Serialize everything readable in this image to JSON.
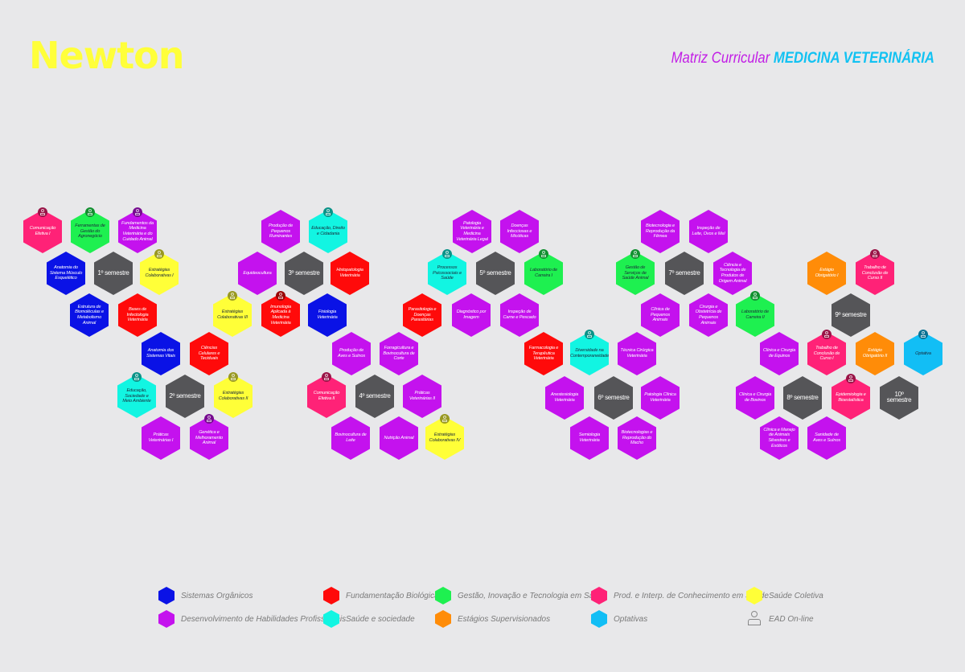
{
  "header": {
    "logo": "Newton",
    "title_prefix": "Matriz Curricular",
    "title_course": "MEDICINA VETERINÁRIA"
  },
  "colors": {
    "S": "#0a12e6",
    "F": "#ff0a0a",
    "G": "#1ef050",
    "P": "#ff2277",
    "C": "#ffff38",
    "D": "#c412ee",
    "H": "#12f5e2",
    "E": "#ff8c08",
    "O": "#12bef5",
    "X": "#555558"
  },
  "legend": [
    {
      "key": "S",
      "label": "Sistemas Orgânicos"
    },
    {
      "key": "D",
      "label": "Desenvolvimento de Habilidades Profissionais"
    },
    {
      "key": "F",
      "label": "Fundamentação Biológica"
    },
    {
      "key": "H",
      "label": "Saúde e sociedade"
    },
    {
      "key": "G",
      "label": "Gestão, Inovação e Tecnologia em Saúde"
    },
    {
      "key": "E",
      "label": "Estágios Supervisionados"
    },
    {
      "key": "P",
      "label": "Prod. e Interp. de Conhecimento em Saúde"
    },
    {
      "key": "O",
      "label": "Optativas"
    },
    {
      "key": "C",
      "label": "Saúde Coletiva"
    },
    {
      "key": "EAD",
      "label": "EAD On-line",
      "icon": "ead-person-computer-icon"
    }
  ],
  "courses": [
    {
      "label": "Comunicação Efetiva I",
      "cat": "P",
      "ead": true
    },
    {
      "label": "Ferramentas de Gestão do Agronegócio",
      "cat": "G",
      "ead": true
    },
    {
      "label": "Fundamentos da Medicina Veterinária e do Cuidado Animal",
      "cat": "D",
      "ead": true
    },
    {
      "label": "Anatomia do Sistema Músculo Esquelético",
      "cat": "S",
      "ead": false
    },
    {
      "label": "1º semestre",
      "cat": "X",
      "ead": false
    },
    {
      "label": "Estratégias Colaborativas I",
      "cat": "C",
      "ead": true
    },
    {
      "label": "Estrutura de Biomoléculas e Metabolismo Animal",
      "cat": "S",
      "ead": false
    },
    {
      "label": "Bases de Infectologia Veterinária",
      "cat": "F",
      "ead": false
    },
    {
      "label": "Anatomia dos Sistemas Vitais",
      "cat": "S",
      "ead": false
    },
    {
      "label": "Ciências Celulares e Teciduais",
      "cat": "F",
      "ead": false
    },
    {
      "label": "Educação, Sociedade e Meio Ambiente",
      "cat": "H",
      "ead": true
    },
    {
      "label": "2º semestre",
      "cat": "X",
      "ead": false
    },
    {
      "label": "Estratégias Colaborativas II",
      "cat": "C",
      "ead": true
    },
    {
      "label": "Práticas Veterinárias I",
      "cat": "D",
      "ead": false
    },
    {
      "label": "Genética e Melhoramento Animal",
      "cat": "D",
      "ead": true
    },
    {
      "label": "Produção de Pequenos Ruminantes",
      "cat": "D",
      "ead": false
    },
    {
      "label": "Educação, Direito e Cidadania",
      "cat": "H",
      "ead": true
    },
    {
      "label": "Equideocultura",
      "cat": "D",
      "ead": false
    },
    {
      "label": "3º semestre",
      "cat": "X",
      "ead": false
    },
    {
      "label": "Histopatologia Veterinária",
      "cat": "F",
      "ead": false
    },
    {
      "label": "Estratégias Colaborativas III",
      "cat": "C",
      "ead": true
    },
    {
      "label": "Imunologia Aplicada à Medicina Veterinária",
      "cat": "F",
      "ead": true
    },
    {
      "label": "Fisiologia Veterinária",
      "cat": "S",
      "ead": false
    },
    {
      "label": "Produção de Aves e Suínos",
      "cat": "D",
      "ead": false
    },
    {
      "label": "Forragicultura e Bovinocultura de Corte",
      "cat": "D",
      "ead": false
    },
    {
      "label": "Comunicação Efetiva II",
      "cat": "P",
      "ead": true
    },
    {
      "label": "4º semestre",
      "cat": "X",
      "ead": false
    },
    {
      "label": "Práticas Veterinárias II",
      "cat": "D",
      "ead": false
    },
    {
      "label": "Bovinocultura de Leite",
      "cat": "D",
      "ead": false
    },
    {
      "label": "Nutrição Animal",
      "cat": "D",
      "ead": false
    },
    {
      "label": "Estratégias Colaborativas IV",
      "cat": "C",
      "ead": true
    },
    {
      "label": "Patologia Veterinária e Medicina Veterinária Legal",
      "cat": "D",
      "ead": false
    },
    {
      "label": "Doenças Infecciosas e Micóticas",
      "cat": "D",
      "ead": false
    },
    {
      "label": "Processos Psicossociais e Saúde",
      "cat": "H",
      "ead": true
    },
    {
      "label": "5º semestre",
      "cat": "X",
      "ead": false
    },
    {
      "label": "Laboratório de Carreira I",
      "cat": "G",
      "ead": true
    },
    {
      "label": "Parasitologia e Doenças Parasitárias",
      "cat": "F",
      "ead": false
    },
    {
      "label": "Diagnóstico por Imagem",
      "cat": "D",
      "ead": false
    },
    {
      "label": "Inspeção de Carne e Pescado",
      "cat": "D",
      "ead": false
    },
    {
      "label": "Farmacologia e Terapêutica Veterinária",
      "cat": "F",
      "ead": false
    },
    {
      "label": "Diversidade na Contemporaneidade",
      "cat": "H",
      "ead": true
    },
    {
      "label": "Técnica Cirúrgica Veterinária",
      "cat": "D",
      "ead": false
    },
    {
      "label": "Anestesiologia Veterinária",
      "cat": "D",
      "ead": false
    },
    {
      "label": "6º semestre",
      "cat": "X",
      "ead": false
    },
    {
      "label": "Patologia Clínica Veterinária",
      "cat": "D",
      "ead": false
    },
    {
      "label": "Semiologia Veterinária",
      "cat": "D",
      "ead": false
    },
    {
      "label": "Biotecnologias e Reprodução do Macho",
      "cat": "D",
      "ead": false
    },
    {
      "label": "Biotecnologia e Reprodução da Fêmea",
      "cat": "D",
      "ead": false
    },
    {
      "label": "Inspeção de Leite, Ovos e Mel",
      "cat": "D",
      "ead": false
    },
    {
      "label": "Gestão de Serviços de Saúde Animal",
      "cat": "G",
      "ead": true
    },
    {
      "label": "7º semestre",
      "cat": "X",
      "ead": false
    },
    {
      "label": "Ciência e Tecnologia de Produtos de Origem Animal",
      "cat": "D",
      "ead": false
    },
    {
      "label": "Clínica de Pequenos Animais",
      "cat": "D",
      "ead": false
    },
    {
      "label": "Cirurgia e Obstetrícia de Pequenos Animais",
      "cat": "D",
      "ead": false
    },
    {
      "label": "Laboratório de Carreira II",
      "cat": "G",
      "ead": true
    },
    {
      "label": "Clínica e Cirurgia de Equinos",
      "cat": "D",
      "ead": false
    },
    {
      "label": "Trabalho de Conclusão de Curso I",
      "cat": "P",
      "ead": true
    },
    {
      "label": "Clínica e Cirurgia de Bovinos",
      "cat": "D",
      "ead": false
    },
    {
      "label": "8º semestre",
      "cat": "X",
      "ead": false
    },
    {
      "label": "Epidemiologia e Bioestatística",
      "cat": "P",
      "ead": true
    },
    {
      "label": "Clínica e Manejo de Animais Silvestres e Exóticos",
      "cat": "D",
      "ead": false
    },
    {
      "label": "Sanidade de Aves e Suínos",
      "cat": "D",
      "ead": false
    },
    {
      "label": "Estágio Obrigatório I",
      "cat": "E",
      "ead": false
    },
    {
      "label": "Trabalho de Conclusão de Curso II",
      "cat": "P",
      "ead": true
    },
    {
      "label": "9º semestre",
      "cat": "X",
      "ead": false
    },
    {
      "label": "Estágio Obrigatório II",
      "cat": "E",
      "ead": false
    },
    {
      "label": "Optativa",
      "cat": "O",
      "ead": true
    },
    {
      "label": "10º semestre",
      "cat": "X",
      "ead": false
    }
  ]
}
